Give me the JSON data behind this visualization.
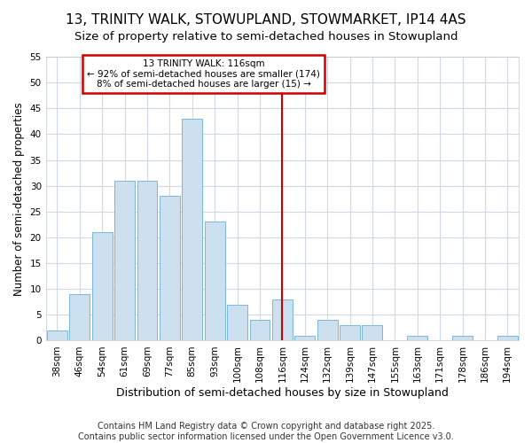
{
  "title": "13, TRINITY WALK, STOWUPLAND, STOWMARKET, IP14 4AS",
  "subtitle": "Size of property relative to semi-detached houses in Stowupland",
  "xlabel": "Distribution of semi-detached houses by size in Stowupland",
  "ylabel": "Number of semi-detached properties",
  "categories": [
    "38sqm",
    "46sqm",
    "54sqm",
    "61sqm",
    "69sqm",
    "77sqm",
    "85sqm",
    "93sqm",
    "100sqm",
    "108sqm",
    "116sqm",
    "124sqm",
    "132sqm",
    "139sqm",
    "147sqm",
    "155sqm",
    "163sqm",
    "171sqm",
    "178sqm",
    "186sqm",
    "194sqm"
  ],
  "values": [
    2,
    9,
    21,
    31,
    31,
    28,
    43,
    23,
    7,
    4,
    8,
    1,
    4,
    3,
    3,
    0,
    1,
    0,
    1,
    0,
    1
  ],
  "bar_color": "#cce0f0",
  "bar_edge_color": "#7ab8d9",
  "vline_x_index": 10,
  "vline_color": "#cc0000",
  "annotation_title": "13 TRINITY WALK: 116sqm",
  "annotation_line1": "← 92% of semi-detached houses are smaller (174)",
  "annotation_line2": "8% of semi-detached houses are larger (15) →",
  "annotation_box_color": "#cc0000",
  "ylim": [
    0,
    55
  ],
  "yticks": [
    0,
    5,
    10,
    15,
    20,
    25,
    30,
    35,
    40,
    45,
    50,
    55
  ],
  "footnote": "Contains HM Land Registry data © Crown copyright and database right 2025.\nContains public sector information licensed under the Open Government Licence v3.0.",
  "bg_color": "#ffffff",
  "plot_bg_color": "#ffffff",
  "grid_color": "#d0d8e8",
  "title_fontsize": 11,
  "subtitle_fontsize": 9.5,
  "xlabel_fontsize": 9,
  "ylabel_fontsize": 8.5,
  "tick_fontsize": 7.5,
  "footnote_fontsize": 7
}
